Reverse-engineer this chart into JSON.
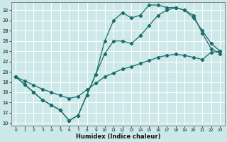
{
  "xlabel": "Humidex (Indice chaleur)",
  "bg_color": "#cce8e8",
  "grid_color": "#ffffff",
  "line_color": "#1a6b6b",
  "xlim": [
    -0.5,
    23.5
  ],
  "ylim": [
    9.5,
    33.5
  ],
  "xticks": [
    0,
    1,
    2,
    3,
    4,
    5,
    6,
    7,
    8,
    9,
    10,
    11,
    12,
    13,
    14,
    15,
    16,
    17,
    18,
    19,
    20,
    21,
    22,
    23
  ],
  "yticks": [
    10,
    12,
    14,
    16,
    18,
    20,
    22,
    24,
    26,
    28,
    30,
    32
  ],
  "line1_x": [
    0,
    1,
    2,
    3,
    4,
    5,
    6,
    7,
    8,
    9,
    10,
    11,
    12,
    13,
    14,
    15,
    16,
    17,
    18,
    19,
    20,
    21,
    22,
    23
  ],
  "line1_y": [
    19,
    17.5,
    16,
    14.5,
    13.5,
    12.5,
    10.5,
    11.5,
    15.5,
    19.5,
    26,
    30,
    31.5,
    30.5,
    31,
    33,
    33,
    32.5,
    32.5,
    32,
    30.5,
    28,
    25.5,
    24
  ],
  "line2_x": [
    0,
    1,
    2,
    3,
    4,
    5,
    6,
    7,
    8,
    9,
    10,
    11,
    12,
    13,
    14,
    15,
    16,
    17,
    18,
    19,
    20,
    21,
    22,
    23
  ],
  "line2_y": [
    19,
    17.5,
    16,
    14.5,
    13.5,
    12.5,
    10.5,
    11.5,
    15.5,
    19.5,
    23.5,
    26,
    26,
    25.5,
    27,
    29,
    31,
    32,
    32.5,
    32,
    31,
    27.5,
    24.5,
    23.5
  ],
  "line3_x": [
    0,
    1,
    2,
    3,
    4,
    5,
    6,
    7,
    8,
    9,
    10,
    11,
    12,
    13,
    14,
    15,
    16,
    17,
    18,
    19,
    20,
    21,
    22,
    23
  ],
  "line3_y": [
    19,
    18.2,
    17.4,
    16.6,
    16.0,
    15.4,
    14.8,
    15.2,
    16.5,
    17.8,
    19.0,
    19.8,
    20.5,
    21.0,
    21.6,
    22.2,
    22.8,
    23.2,
    23.4,
    23.2,
    22.8,
    22.4,
    23.8,
    24.0
  ]
}
